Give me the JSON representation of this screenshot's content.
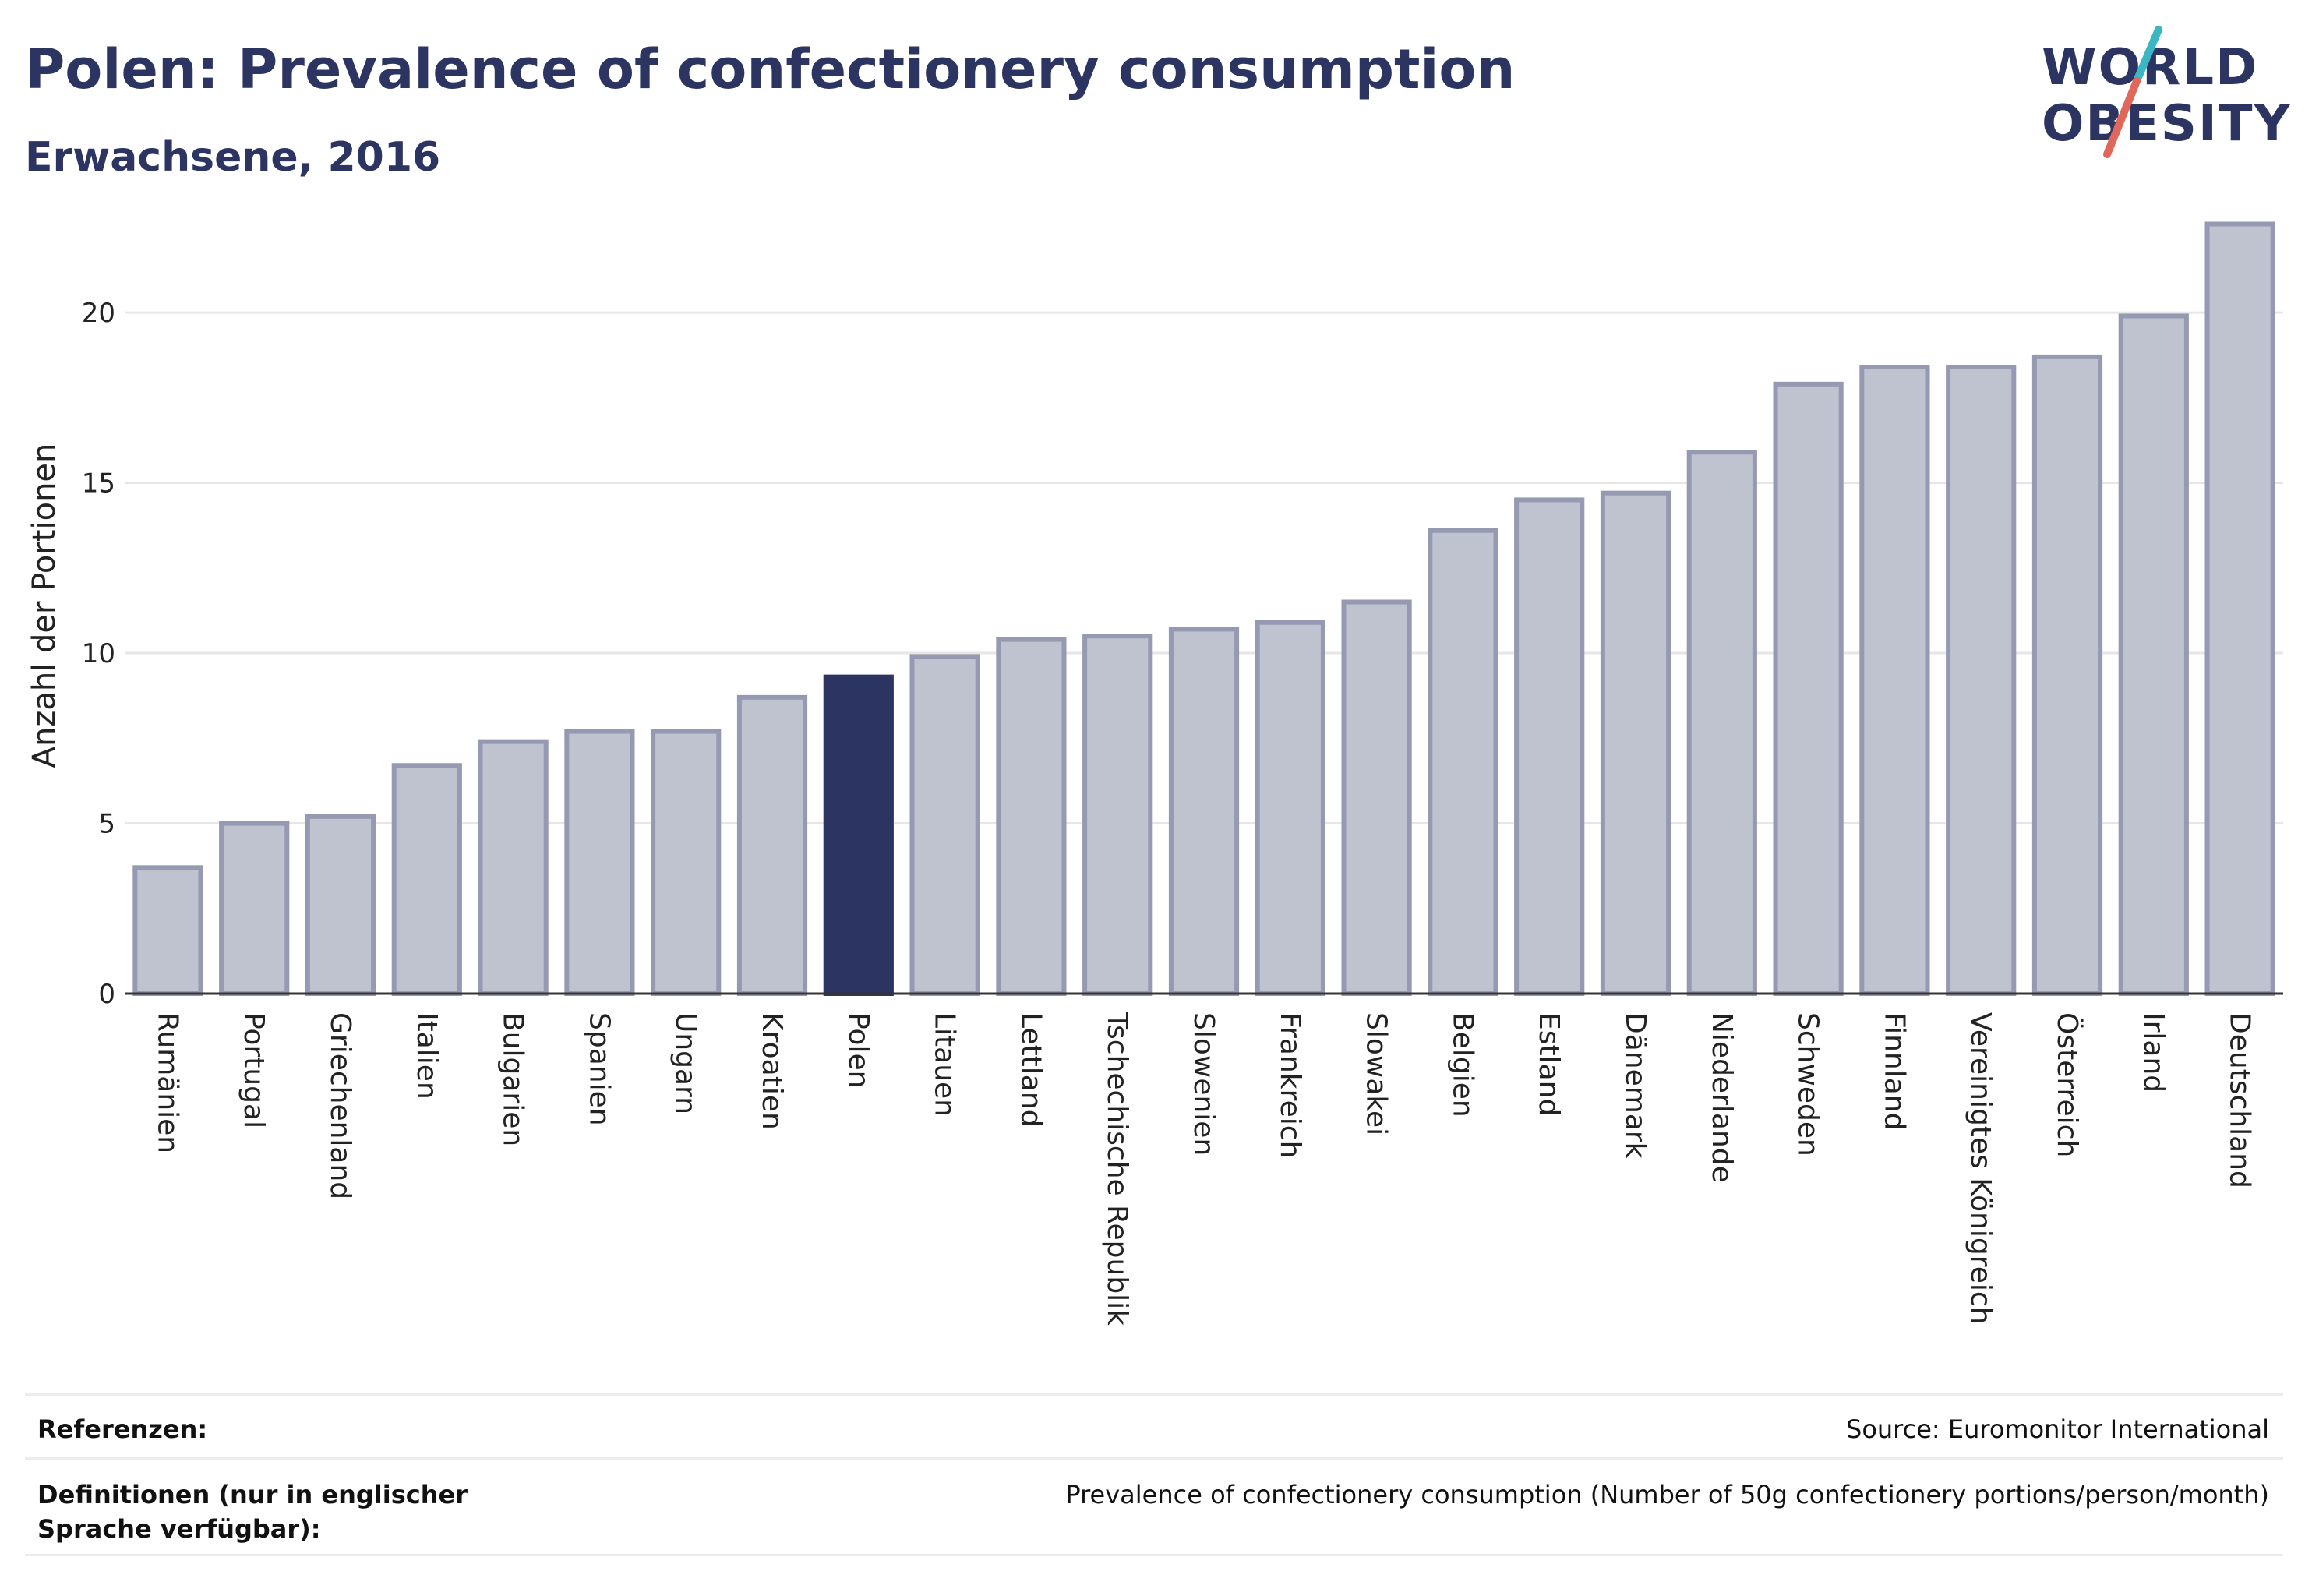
{
  "header": {
    "title": "Polen: Prevalence of confectionery consumption",
    "subtitle": "Erwachsene, 2016"
  },
  "logo": {
    "line1": "WORLD",
    "line2": "OBESITY",
    "accent_colors": [
      "#3bb7c3",
      "#e0675a"
    ]
  },
  "chart_data": {
    "type": "bar",
    "title": "Polen: Prevalence of confectionery consumption",
    "subtitle": "Erwachsene, 2016",
    "xlabel": "",
    "ylabel": "Anzahl der Portionen",
    "ylim": [
      0,
      23
    ],
    "yticks": [
      0,
      5,
      10,
      15,
      20
    ],
    "grid": true,
    "highlight": "Polen",
    "bar_color": "#bfc2cf",
    "bar_edge_color": "#9599b1",
    "highlight_color": "#2c3561",
    "categories": [
      "Rumänien",
      "Portugal",
      "Griechenland",
      "Italien",
      "Bulgarien",
      "Spanien",
      "Ungarn",
      "Kroatien",
      "Polen",
      "Litauen",
      "Lettland",
      "Tschechische Republik",
      "Slowenien",
      "Frankreich",
      "Slowakei",
      "Belgien",
      "Estland",
      "Dänemark",
      "Niederlande",
      "Schweden",
      "Finnland",
      "Vereinigtes Königreich",
      "Österreich",
      "Irland",
      "Deutschland"
    ],
    "values": [
      3.7,
      5.0,
      5.2,
      6.7,
      7.4,
      7.7,
      7.7,
      8.7,
      9.3,
      9.9,
      10.4,
      10.5,
      10.7,
      10.9,
      11.5,
      13.6,
      14.5,
      14.7,
      15.9,
      17.9,
      18.4,
      18.4,
      18.7,
      19.9,
      22.6
    ]
  },
  "footer": {
    "references_label": "Referenzen:",
    "references_value": "Source: Euromonitor International",
    "definitions_label": "Definitionen (nur in englischer Sprache verfügbar):",
    "definitions_value": "Prevalence of confectionery consumption (Number of 50g confectionery portions/person/month)"
  }
}
